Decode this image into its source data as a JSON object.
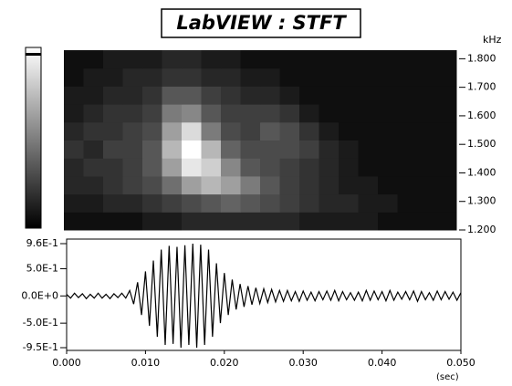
{
  "chart_data": [
    {
      "type": "heatmap",
      "title": "LabVIEW : STFT",
      "ylabel": "kHz",
      "colormap": "gray",
      "xlim": [
        0,
        0.05
      ],
      "ylim": [
        1.2,
        1.83
      ],
      "yticks": [
        {
          "value": 1.2,
          "label": "1.200"
        },
        {
          "value": 1.3,
          "label": "1.300"
        },
        {
          "value": 1.4,
          "label": "1.400"
        },
        {
          "value": 1.5,
          "label": "1.500"
        },
        {
          "value": 1.6,
          "label": "1.600"
        },
        {
          "value": 1.7,
          "label": "1.700"
        },
        {
          "value": 1.8,
          "label": "1.800"
        }
      ],
      "z": [
        [
          0,
          0,
          0,
          0,
          0.05,
          0.05,
          0.1,
          0.1,
          0.1,
          0.1,
          0.1,
          0.1,
          0.05,
          0.05,
          0.05,
          0.05,
          0,
          0,
          0,
          0
        ],
        [
          0.05,
          0.05,
          0.1,
          0.1,
          0.15,
          0.2,
          0.25,
          0.3,
          0.35,
          0.3,
          0.25,
          0.2,
          0.15,
          0.1,
          0.1,
          0.05,
          0.05,
          0,
          0,
          0
        ],
        [
          0.1,
          0.1,
          0.15,
          0.2,
          0.25,
          0.4,
          0.6,
          0.7,
          0.6,
          0.45,
          0.3,
          0.2,
          0.15,
          0.1,
          0.05,
          0.05,
          0,
          0,
          0,
          0
        ],
        [
          0.1,
          0.15,
          0.15,
          0.2,
          0.3,
          0.6,
          0.9,
          0.8,
          0.5,
          0.3,
          0.25,
          0.2,
          0.15,
          0.1,
          0.05,
          0,
          0,
          0,
          0,
          0
        ],
        [
          0.15,
          0.1,
          0.2,
          0.2,
          0.3,
          0.7,
          1,
          0.7,
          0.35,
          0.25,
          0.25,
          0.25,
          0.2,
          0.1,
          0.05,
          0,
          0,
          0,
          0,
          0
        ],
        [
          0.1,
          0.15,
          0.15,
          0.2,
          0.25,
          0.6,
          0.85,
          0.45,
          0.25,
          0.2,
          0.3,
          0.25,
          0.15,
          0.05,
          0,
          0,
          0,
          0,
          0,
          0
        ],
        [
          0.05,
          0.1,
          0.15,
          0.15,
          0.2,
          0.45,
          0.5,
          0.3,
          0.2,
          0.2,
          0.2,
          0.15,
          0.05,
          0,
          0,
          0,
          0,
          0,
          0,
          0
        ],
        [
          0.05,
          0.05,
          0.1,
          0.1,
          0.15,
          0.3,
          0.3,
          0.2,
          0.15,
          0.1,
          0.1,
          0.05,
          0,
          0,
          0,
          0,
          0,
          0,
          0,
          0
        ],
        [
          0,
          0.05,
          0.05,
          0.1,
          0.1,
          0.15,
          0.15,
          0.1,
          0.1,
          0.05,
          0.05,
          0,
          0,
          0,
          0,
          0,
          0,
          0,
          0,
          0
        ],
        [
          0,
          0,
          0.05,
          0.05,
          0.05,
          0.1,
          0.1,
          0.05,
          0.05,
          0,
          0,
          0,
          0,
          0,
          0,
          0,
          0,
          0,
          0,
          0
        ]
      ]
    },
    {
      "type": "line",
      "xlabel": "(sec)",
      "color": "#000000",
      "xlim": [
        0,
        0.05
      ],
      "ylim": [
        -0.95,
        0.96
      ],
      "xticks": [
        {
          "value": 0,
          "label": "0.000"
        },
        {
          "value": 0.01,
          "label": "0.010"
        },
        {
          "value": 0.02,
          "label": "0.020"
        },
        {
          "value": 0.03,
          "label": "0.030"
        },
        {
          "value": 0.04,
          "label": "0.040"
        },
        {
          "value": 0.05,
          "label": "0.050"
        }
      ],
      "yticks": [
        {
          "value": 0.96,
          "label": "9.6E-1"
        },
        {
          "value": 0.5,
          "label": "5.0E-1"
        },
        {
          "value": 0,
          "label": "0.0E+0"
        },
        {
          "value": -0.5,
          "label": "-5.0E-1"
        },
        {
          "value": -0.95,
          "label": "-9.5E-1"
        }
      ],
      "x": [
        0,
        0.0005,
        0.001,
        0.0015,
        0.002,
        0.0025,
        0.003,
        0.0035,
        0.004,
        0.0045,
        0.005,
        0.0055,
        0.006,
        0.0065,
        0.007,
        0.0075,
        0.008,
        0.0085,
        0.009,
        0.0095,
        0.01,
        0.0105,
        0.011,
        0.0115,
        0.012,
        0.0125,
        0.013,
        0.0135,
        0.014,
        0.0145,
        0.015,
        0.0155,
        0.016,
        0.0165,
        0.017,
        0.0175,
        0.018,
        0.0185,
        0.019,
        0.0195,
        0.02,
        0.0205,
        0.021,
        0.0215,
        0.022,
        0.0225,
        0.023,
        0.0235,
        0.024,
        0.0245,
        0.025,
        0.0255,
        0.026,
        0.0265,
        0.027,
        0.0275,
        0.028,
        0.0285,
        0.029,
        0.0295,
        0.03,
        0.0305,
        0.031,
        0.0315,
        0.032,
        0.0325,
        0.033,
        0.0335,
        0.034,
        0.0345,
        0.035,
        0.0355,
        0.036,
        0.0365,
        0.037,
        0.0375,
        0.038,
        0.0385,
        0.039,
        0.0395,
        0.04,
        0.0405,
        0.041,
        0.0415,
        0.042,
        0.0425,
        0.043,
        0.0435,
        0.044,
        0.0445,
        0.045,
        0.0455,
        0.046,
        0.0465,
        0.047,
        0.0475,
        0.048,
        0.0485,
        0.049,
        0.0495,
        0.05
      ],
      "values": [
        0.03,
        -0.04,
        0.05,
        -0.03,
        0.04,
        -0.05,
        0.03,
        -0.04,
        0.05,
        -0.04,
        0.03,
        -0.05,
        0.04,
        -0.03,
        0.05,
        -0.04,
        0.1,
        -0.15,
        0.25,
        -0.35,
        0.45,
        -0.55,
        0.65,
        -0.75,
        0.85,
        -0.9,
        0.92,
        -0.88,
        0.9,
        -0.95,
        0.93,
        -0.9,
        0.96,
        -0.95,
        0.94,
        -0.9,
        0.85,
        -0.75,
        0.6,
        -0.5,
        0.42,
        -0.35,
        0.3,
        -0.25,
        0.22,
        -0.2,
        0.18,
        -0.16,
        0.15,
        -0.14,
        0.13,
        -0.12,
        0.12,
        -0.11,
        0.1,
        -0.1,
        0.1,
        -0.09,
        0.08,
        -0.1,
        0.09,
        -0.08,
        0.07,
        -0.09,
        0.08,
        -0.07,
        0.09,
        -0.08,
        0.1,
        -0.09,
        0.08,
        -0.07,
        0.06,
        -0.08,
        0.07,
        -0.09,
        0.1,
        -0.08,
        0.09,
        -0.07,
        0.08,
        -0.09,
        0.1,
        -0.08,
        0.07,
        -0.06,
        0.08,
        -0.07,
        0.09,
        -0.1,
        0.08,
        -0.07,
        0.06,
        -0.08,
        0.09,
        -0.07,
        0.08,
        -0.06,
        0.07,
        -0.08,
        0.06
      ]
    }
  ]
}
